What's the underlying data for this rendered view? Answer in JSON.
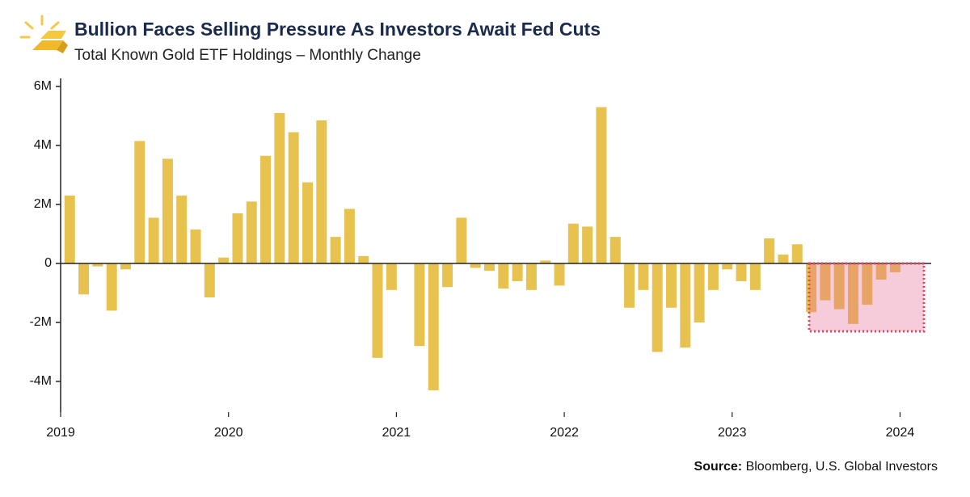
{
  "chart_data": {
    "type": "bar",
    "title": "Bullion Faces Selling Pressure As Investors Await Fed Cuts",
    "subtitle": "Total Known Gold ETF Holdings – Monthly Change",
    "source_label": "Source:",
    "source": "Bloomberg, U.S. Global Investors",
    "categories": [
      null,
      null,
      null,
      null,
      null,
      null,
      null,
      null,
      null,
      null,
      null,
      null,
      null,
      null,
      null,
      null,
      null,
      null,
      null,
      null,
      null,
      null,
      null,
      null,
      null,
      null,
      null,
      null,
      null,
      null,
      null,
      null,
      null,
      null,
      null,
      null,
      null,
      null,
      null,
      null,
      null,
      null,
      null,
      null,
      null,
      null,
      null,
      null,
      null,
      null,
      null,
      null,
      null,
      null,
      null,
      null,
      null,
      null,
      null,
      null
    ],
    "values": [
      2.3,
      -1.05,
      -0.1,
      -1.6,
      -0.2,
      4.15,
      1.55,
      3.55,
      2.3,
      1.15,
      -1.15,
      0.2,
      1.7,
      2.1,
      3.65,
      5.1,
      4.45,
      2.75,
      4.85,
      0.9,
      1.85,
      0.25,
      -3.2,
      -0.9,
      0.02,
      -2.8,
      -4.3,
      -0.8,
      1.55,
      -0.15,
      -0.25,
      -0.85,
      -0.6,
      -0.9,
      0.1,
      -0.75,
      1.35,
      1.25,
      5.3,
      0.9,
      -1.5,
      -0.9,
      -3.0,
      -1.5,
      -2.85,
      -2.0,
      -0.9,
      -0.2,
      -0.6,
      -0.9,
      0.85,
      0.3,
      0.65,
      -1.65,
      -1.25,
      -1.55,
      -2.05,
      -1.4,
      -0.55,
      -0.3
    ],
    "color": "#e8c24f",
    "ylim": [
      -5,
      6
    ],
    "yticks": [
      {
        "value": -4,
        "label": "-4M"
      },
      {
        "value": -2,
        "label": "-2M"
      },
      0,
      {
        "value": 2,
        "label": "2M"
      },
      {
        "value": 4,
        "label": "4M"
      },
      {
        "value": 6,
        "label": "6M"
      }
    ],
    "xlim": [
      2019,
      2024.2
    ],
    "xticks": [
      2019,
      2020,
      2021,
      2022,
      2023,
      2024
    ],
    "grid": false
  }
}
